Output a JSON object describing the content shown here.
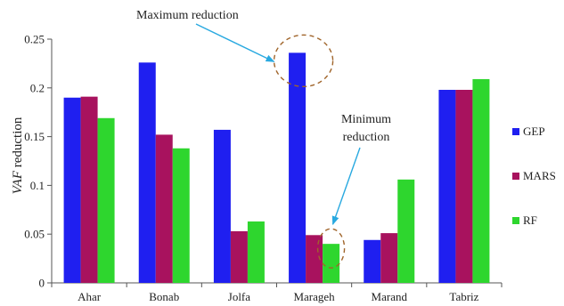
{
  "chart_data": {
    "type": "bar",
    "categories": [
      "Ahar",
      "Bonab",
      "Jolfa",
      "Marageh",
      "Marand",
      "Tabriz"
    ],
    "series": [
      {
        "name": "GEP",
        "color": "#1f1ff0",
        "values": [
          0.19,
          0.226,
          0.157,
          0.236,
          0.044,
          0.198
        ]
      },
      {
        "name": "MARS",
        "color": "#a8125e",
        "values": [
          0.191,
          0.152,
          0.053,
          0.049,
          0.051,
          0.198
        ]
      },
      {
        "name": "RF",
        "color": "#2ed62e",
        "values": [
          0.169,
          0.138,
          0.063,
          0.04,
          0.106,
          0.209
        ]
      }
    ],
    "ylabel_italic": "VAF",
    "ylabel_rest": " reduction",
    "ylim": [
      0,
      0.25
    ],
    "yticks": [
      "0",
      "0.05",
      "0.1",
      "0.15",
      "0.2",
      "0.25"
    ],
    "ytick_values": [
      0,
      0.05,
      0.1,
      0.15,
      0.2,
      0.25
    ],
    "grid": false,
    "legend_position": "right",
    "annotations": [
      {
        "text_lines": [
          "Maximum reduction"
        ],
        "target": {
          "category": "Marageh",
          "series": "GEP"
        }
      },
      {
        "text_lines": [
          "Minimum",
          "reduction"
        ],
        "target": {
          "category": "Marageh",
          "series": "RF"
        }
      }
    ],
    "annotation_arrow_color": "#29a9e0",
    "annotation_circle_color": "#a0642a"
  }
}
